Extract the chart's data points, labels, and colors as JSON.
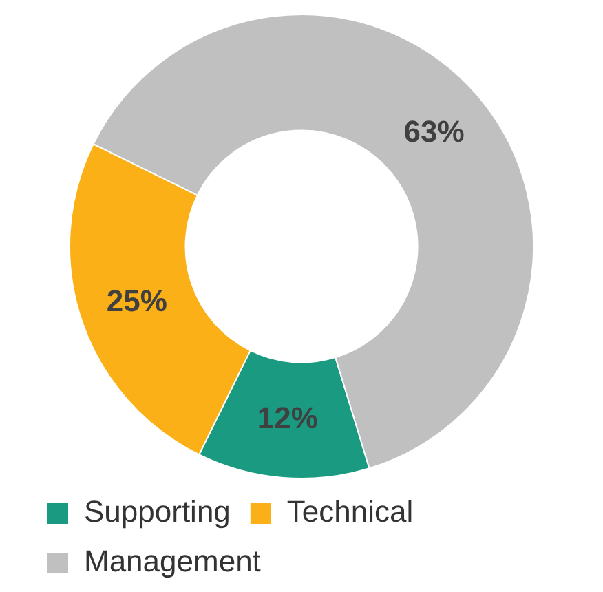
{
  "chart_data": {
    "type": "donut",
    "categories": [
      "Supporting",
      "Technical",
      "Management"
    ],
    "values": [
      12,
      25,
      63
    ],
    "colors": [
      "#1a9a80",
      "#fbb018",
      "#c0c0c0"
    ],
    "value_labels": [
      "12%",
      "25%",
      "63%"
    ],
    "legend": "bottom"
  }
}
